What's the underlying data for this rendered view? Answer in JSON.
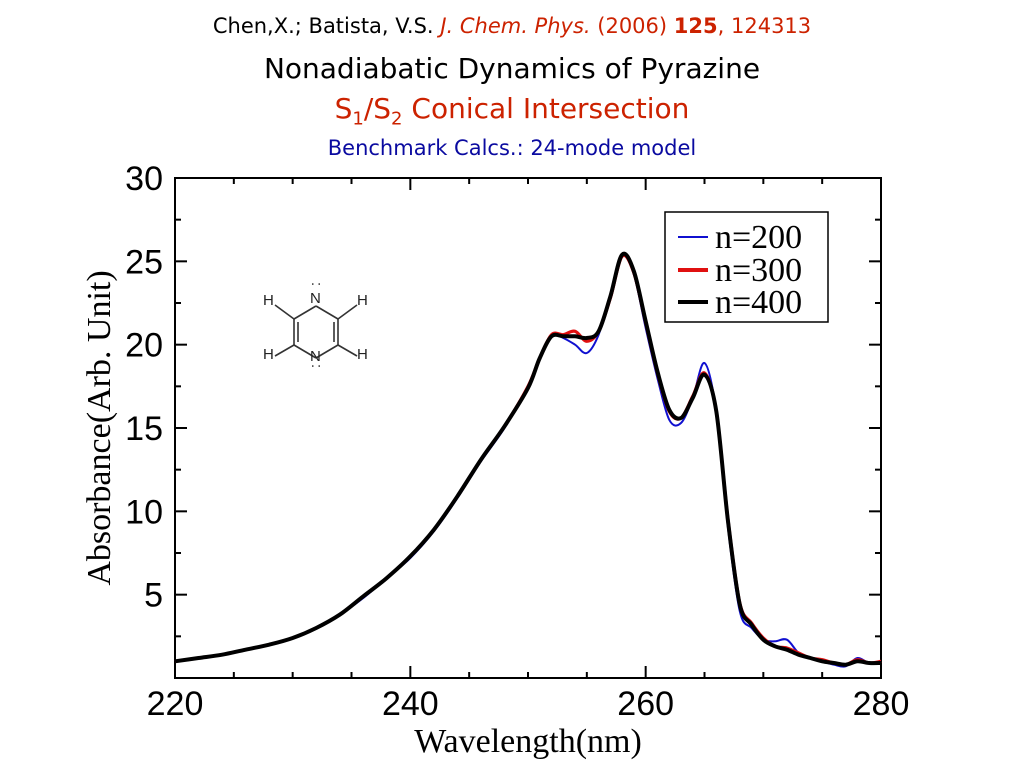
{
  "header": {
    "citation_authors": "Chen,X.; Batista, V.S.",
    "citation_journal": "J. Chem. Phys.",
    "citation_year": "(2006)",
    "citation_volume": "125",
    "citation_pages": ", 124313",
    "title_line1": "Nonadiabatic Dynamics of Pyrazine",
    "title_s": "S",
    "title_sub1": "1",
    "title_slash": "/S",
    "title_sub2": "2",
    "title_rest": " Conical Intersection",
    "subtitle": "Benchmark Calcs.: 24-mode model"
  },
  "molecule": {
    "atoms": [
      "H",
      "N",
      "H",
      "H",
      "N",
      "H"
    ],
    "lone_pair": ":"
  },
  "colors": {
    "n200": "#1010d0",
    "n300": "#e01010",
    "n400": "#000000"
  },
  "chart_data": {
    "type": "line",
    "xlabel": "Wavelength(nm)",
    "ylabel": "Absorbance(Arb. Unit)",
    "xlim": [
      220,
      280
    ],
    "ylim": [
      0,
      30
    ],
    "xticks": [
      220,
      240,
      260,
      280
    ],
    "yticks": [
      5,
      10,
      15,
      20,
      25,
      30
    ],
    "legend_position": "top-right",
    "series": [
      {
        "name": "n=200",
        "x": [
          220,
          222,
          224,
          226,
          228,
          230,
          232,
          234,
          236,
          238,
          240,
          242,
          244,
          246,
          248,
          250,
          251,
          252,
          253,
          254,
          255,
          256,
          257,
          258,
          259,
          260,
          261,
          262,
          263,
          264,
          265,
          266,
          267,
          268,
          269,
          270,
          271,
          272,
          273,
          274,
          275,
          276,
          277,
          278,
          279,
          280
        ],
        "y": [
          1.0,
          1.2,
          1.4,
          1.7,
          2.0,
          2.4,
          3.0,
          3.8,
          4.8,
          6.0,
          7.2,
          8.8,
          10.8,
          13.0,
          15.0,
          17.5,
          19.2,
          20.6,
          20.4,
          20.0,
          19.5,
          20.6,
          23.0,
          25.3,
          24.2,
          21.0,
          18.0,
          15.5,
          15.3,
          16.8,
          18.9,
          16.0,
          9.0,
          4.0,
          3.0,
          2.3,
          2.2,
          2.3,
          1.5,
          1.2,
          1.0,
          0.8,
          0.7,
          1.2,
          0.9,
          1.0
        ]
      },
      {
        "name": "n=300",
        "x": [
          220,
          222,
          224,
          226,
          228,
          230,
          232,
          234,
          236,
          238,
          240,
          242,
          244,
          246,
          248,
          250,
          251,
          252,
          253,
          254,
          255,
          256,
          257,
          258,
          259,
          260,
          261,
          262,
          263,
          264,
          265,
          266,
          267,
          268,
          269,
          270,
          271,
          272,
          273,
          274,
          275,
          276,
          277,
          278,
          279,
          280
        ],
        "y": [
          1.0,
          1.2,
          1.4,
          1.7,
          2.0,
          2.4,
          3.0,
          3.8,
          4.9,
          6.0,
          7.3,
          8.9,
          10.9,
          13.1,
          15.1,
          17.5,
          19.2,
          20.6,
          20.6,
          20.8,
          20.2,
          20.8,
          22.8,
          25.3,
          24.3,
          21.3,
          18.3,
          16.0,
          15.6,
          16.9,
          18.3,
          16.0,
          9.5,
          4.5,
          3.3,
          2.4,
          1.9,
          1.8,
          1.5,
          1.2,
          1.1,
          0.9,
          0.8,
          1.1,
          0.9,
          1.0
        ]
      },
      {
        "name": "n=400",
        "x": [
          220,
          222,
          224,
          226,
          228,
          230,
          232,
          234,
          236,
          238,
          240,
          242,
          244,
          246,
          248,
          250,
          251,
          252,
          253,
          254,
          255,
          256,
          257,
          258,
          259,
          260,
          261,
          262,
          263,
          264,
          265,
          266,
          267,
          268,
          269,
          270,
          271,
          272,
          273,
          274,
          275,
          276,
          277,
          278,
          279,
          280
        ],
        "y": [
          1.0,
          1.2,
          1.4,
          1.7,
          2.0,
          2.4,
          3.0,
          3.8,
          4.9,
          6.0,
          7.3,
          8.9,
          10.9,
          13.1,
          15.1,
          17.4,
          19.2,
          20.5,
          20.5,
          20.5,
          20.4,
          20.8,
          22.9,
          25.4,
          24.4,
          21.4,
          18.4,
          16.1,
          15.6,
          16.8,
          18.2,
          16.0,
          9.4,
          4.4,
          3.2,
          2.3,
          1.9,
          1.7,
          1.4,
          1.2,
          1.0,
          0.9,
          0.8,
          1.0,
          0.9,
          0.9
        ]
      }
    ]
  }
}
